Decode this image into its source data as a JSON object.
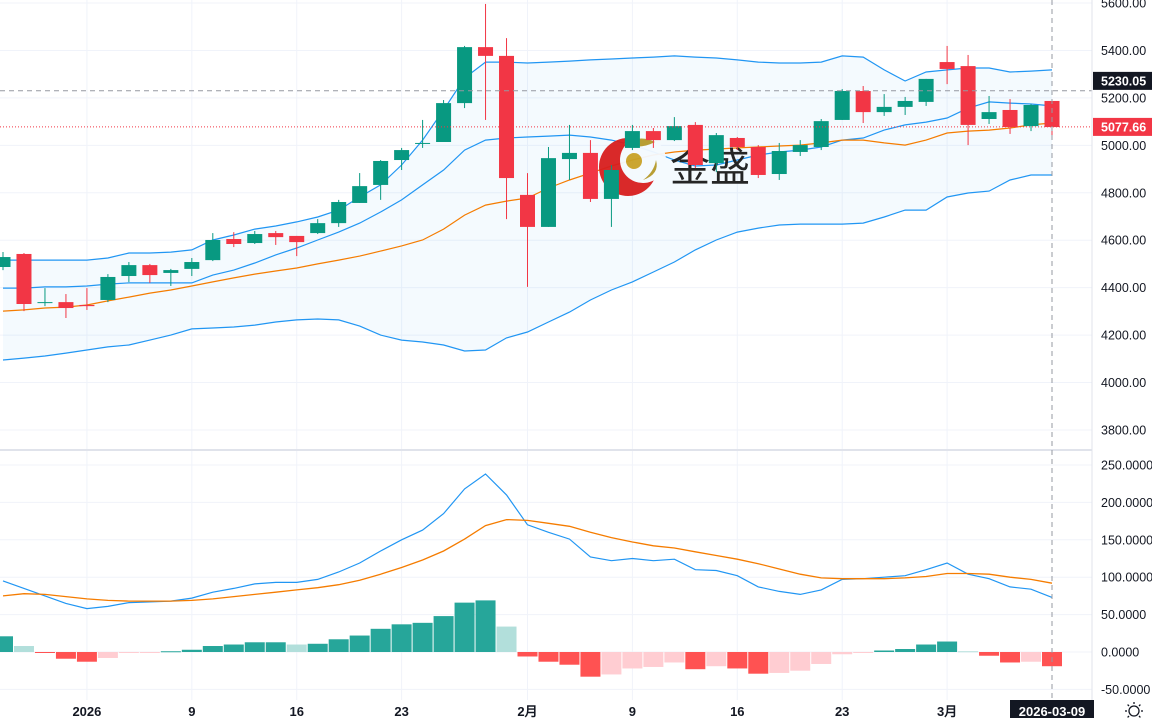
{
  "watermark": {
    "text": "金盛"
  },
  "colors": {
    "up": "#089981",
    "down": "#f23645",
    "band": "#2196f3",
    "basis": "#f57c00",
    "macd": "#2196f3",
    "signal": "#f57c00",
    "hist_up_strong": "#26a69a",
    "hist_up_weak": "#b2dfdb",
    "hist_down_strong": "#ff5252",
    "hist_down_weak": "#ffcdd2",
    "crosshair_label": "#131722",
    "last_price_label": "#f23645"
  },
  "crosshair": {
    "price_label": "5230.05",
    "price": 5230.05,
    "time_label": "2026-03-09",
    "index": 50
  },
  "last_price": {
    "label": "5077.66",
    "price": 5077.66
  },
  "chart_data": {
    "type": "candlestick",
    "price_axis": {
      "min": 3800,
      "max": 5600,
      "labels": [
        "5600.00",
        "5400.00",
        "5200.00",
        "5000.00",
        "4800.00",
        "4600.00",
        "4400.00",
        "4200.00",
        "4000.00",
        "3800.00"
      ],
      "values": [
        5600,
        5400,
        5200,
        5000,
        4800,
        4600,
        4400,
        4200,
        4000,
        3800
      ]
    },
    "macd_axis": {
      "labels": [
        "250.0000",
        "200.0000",
        "150.0000",
        "100.0000",
        "50.0000",
        "0.0000",
        "-50.0000"
      ],
      "values": [
        250,
        200,
        150,
        100,
        50,
        0,
        -50
      ]
    },
    "x_ticks": [
      {
        "index": 4,
        "label": "2026"
      },
      {
        "index": 9,
        "label": "9"
      },
      {
        "index": 14,
        "label": "16"
      },
      {
        "index": 19,
        "label": "23"
      },
      {
        "index": 25,
        "label": "2月"
      },
      {
        "index": 30,
        "label": "9"
      },
      {
        "index": 35,
        "label": "16"
      },
      {
        "index": 40,
        "label": "23"
      },
      {
        "index": 45,
        "label": "3月"
      }
    ],
    "ohlc": [
      [
        4487,
        4550,
        4474,
        4529
      ],
      [
        4542,
        4546,
        4301,
        4331
      ],
      [
        4335,
        4398,
        4322,
        4339
      ],
      [
        4339,
        4373,
        4272,
        4314
      ],
      [
        4327,
        4398,
        4306,
        4322
      ],
      [
        4348,
        4457,
        4339,
        4445
      ],
      [
        4449,
        4508,
        4424,
        4495
      ],
      [
        4495,
        4500,
        4420,
        4453
      ],
      [
        4462,
        4479,
        4407,
        4474
      ],
      [
        4479,
        4525,
        4449,
        4508
      ],
      [
        4516,
        4630,
        4512,
        4601
      ],
      [
        4605,
        4634,
        4571,
        4584
      ],
      [
        4588,
        4639,
        4584,
        4626
      ],
      [
        4630,
        4639,
        4580,
        4613
      ],
      [
        4618,
        4618,
        4533,
        4592
      ],
      [
        4630,
        4689,
        4626,
        4672
      ],
      [
        4672,
        4770,
        4656,
        4761
      ],
      [
        4757,
        4883,
        4757,
        4828
      ],
      [
        4833,
        4938,
        4770,
        4934
      ],
      [
        4938,
        4989,
        4896,
        4980
      ],
      [
        5006,
        5107,
        4989,
        5010
      ],
      [
        5014,
        5191,
        5014,
        5178
      ],
      [
        5178,
        5419,
        5157,
        5414
      ],
      [
        5414,
        5596,
        5107,
        5377
      ],
      [
        5377,
        5452,
        4689,
        4862
      ],
      [
        4791,
        4883,
        4403,
        4656
      ],
      [
        4656,
        4993,
        4656,
        4946
      ],
      [
        4942,
        5086,
        4854,
        4968
      ],
      [
        4968,
        5022,
        4761,
        4774
      ],
      [
        4774,
        4917,
        4656,
        4896
      ],
      [
        4989,
        5086,
        4980,
        5060
      ],
      [
        5060,
        5073,
        4989,
        5022
      ],
      [
        5022,
        5119,
        5018,
        5081
      ],
      [
        5086,
        5098,
        4904,
        4917
      ],
      [
        4925,
        5052,
        4887,
        5043
      ],
      [
        5031,
        5035,
        4980,
        4993
      ],
      [
        4993,
        5001,
        4862,
        4875
      ],
      [
        4879,
        5010,
        4854,
        4976
      ],
      [
        4972,
        5022,
        4955,
        5001
      ],
      [
        4993,
        5111,
        4980,
        5102
      ],
      [
        5107,
        5237,
        5107,
        5229
      ],
      [
        5229,
        5250,
        5094,
        5140
      ],
      [
        5140,
        5216,
        5124,
        5162
      ],
      [
        5162,
        5204,
        5128,
        5187
      ],
      [
        5183,
        5280,
        5166,
        5280
      ],
      [
        5351,
        5419,
        5258,
        5322
      ],
      [
        5334,
        5381,
        5001,
        5086
      ],
      [
        5111,
        5208,
        5090,
        5140
      ],
      [
        5149,
        5195,
        5048,
        5077
      ],
      [
        5081,
        5174,
        5060,
        5170
      ],
      [
        5187,
        5187,
        5035,
        5077
      ]
    ],
    "bollinger": {
      "upper": [
        4516,
        4516,
        4516,
        4516,
        4516,
        4525,
        4546,
        4546,
        4550,
        4559,
        4601,
        4622,
        4647,
        4660,
        4677,
        4698,
        4727,
        4782,
        4833,
        4917,
        5022,
        5149,
        5284,
        5351,
        5351,
        5347,
        5351,
        5355,
        5360,
        5364,
        5368,
        5372,
        5377,
        5372,
        5368,
        5360,
        5351,
        5347,
        5347,
        5351,
        5377,
        5372,
        5318,
        5271,
        5309,
        5318,
        5326,
        5326,
        5309,
        5313,
        5318
      ],
      "basis": [
        4301,
        4306,
        4314,
        4318,
        4327,
        4344,
        4360,
        4377,
        4390,
        4407,
        4424,
        4441,
        4457,
        4470,
        4483,
        4500,
        4516,
        4533,
        4554,
        4576,
        4601,
        4647,
        4706,
        4748,
        4765,
        4778,
        4820,
        4854,
        4883,
        4913,
        4938,
        4959,
        4972,
        4980,
        4984,
        4989,
        4993,
        4997,
        5001,
        5010,
        5022,
        5022,
        5010,
        5001,
        5022,
        5052,
        5060,
        5064,
        5073,
        5086,
        5094
      ],
      "inner": [
        4398,
        4398,
        4403,
        4403,
        4407,
        4415,
        4420,
        4420,
        4420,
        4420,
        4453,
        4474,
        4504,
        4538,
        4567,
        4601,
        4634,
        4672,
        4719,
        4770,
        4833,
        4896,
        4980,
        5022,
        5031,
        5035,
        5039,
        5043,
        5035,
        5022,
        5001,
        4972,
        4938,
        4913,
        4917,
        4938,
        4959,
        4972,
        4980,
        4993,
        5022,
        5031,
        5064,
        5086,
        5098,
        5115,
        5157,
        5183,
        5178,
        5174,
        5166
      ],
      "lower": [
        4095,
        4103,
        4112,
        4124,
        4137,
        4150,
        4158,
        4179,
        4200,
        4226,
        4230,
        4234,
        4242,
        4255,
        4264,
        4268,
        4264,
        4238,
        4200,
        4179,
        4171,
        4158,
        4133,
        4137,
        4188,
        4213,
        4255,
        4297,
        4348,
        4390,
        4424,
        4466,
        4508,
        4559,
        4601,
        4634,
        4651,
        4664,
        4668,
        4668,
        4668,
        4672,
        4698,
        4727,
        4727,
        4782,
        4799,
        4807,
        4854,
        4875,
        4875
      ]
    },
    "macd": {
      "macd": [
        95,
        85,
        75,
        65,
        58,
        61,
        66,
        67,
        68,
        72,
        80,
        85,
        91,
        93,
        93,
        97,
        107,
        119,
        135,
        150,
        163,
        185,
        218,
        238,
        210,
        170,
        160,
        151,
        127,
        122,
        125,
        122,
        124,
        110,
        109,
        102,
        87,
        81,
        77,
        83,
        97,
        98,
        100,
        102,
        110,
        119,
        104,
        98,
        87,
        84,
        73
      ],
      "signal": [
        75,
        78,
        77,
        74,
        71,
        69,
        68,
        68,
        68,
        69,
        71,
        74,
        77,
        80,
        83,
        86,
        90,
        96,
        104,
        113,
        123,
        135,
        151,
        169,
        177,
        176,
        172,
        168,
        160,
        153,
        147,
        142,
        139,
        134,
        129,
        124,
        118,
        111,
        104,
        99,
        98,
        98,
        98,
        99,
        101,
        105,
        105,
        104,
        100,
        97,
        92
      ],
      "histogram": [
        21,
        8,
        -1,
        -9,
        -13,
        -8,
        -1,
        -1,
        1,
        3,
        8,
        10,
        13,
        13,
        10,
        11,
        17,
        22,
        31,
        37,
        39,
        48,
        66,
        69,
        34,
        -6,
        -13,
        -17,
        -33,
        -30,
        -22,
        -20,
        -14,
        -23,
        -19,
        -22,
        -29,
        -28,
        -25,
        -16,
        -3,
        -1,
        2,
        4,
        10,
        14,
        1,
        -5,
        -14,
        -13,
        -19
      ]
    }
  }
}
